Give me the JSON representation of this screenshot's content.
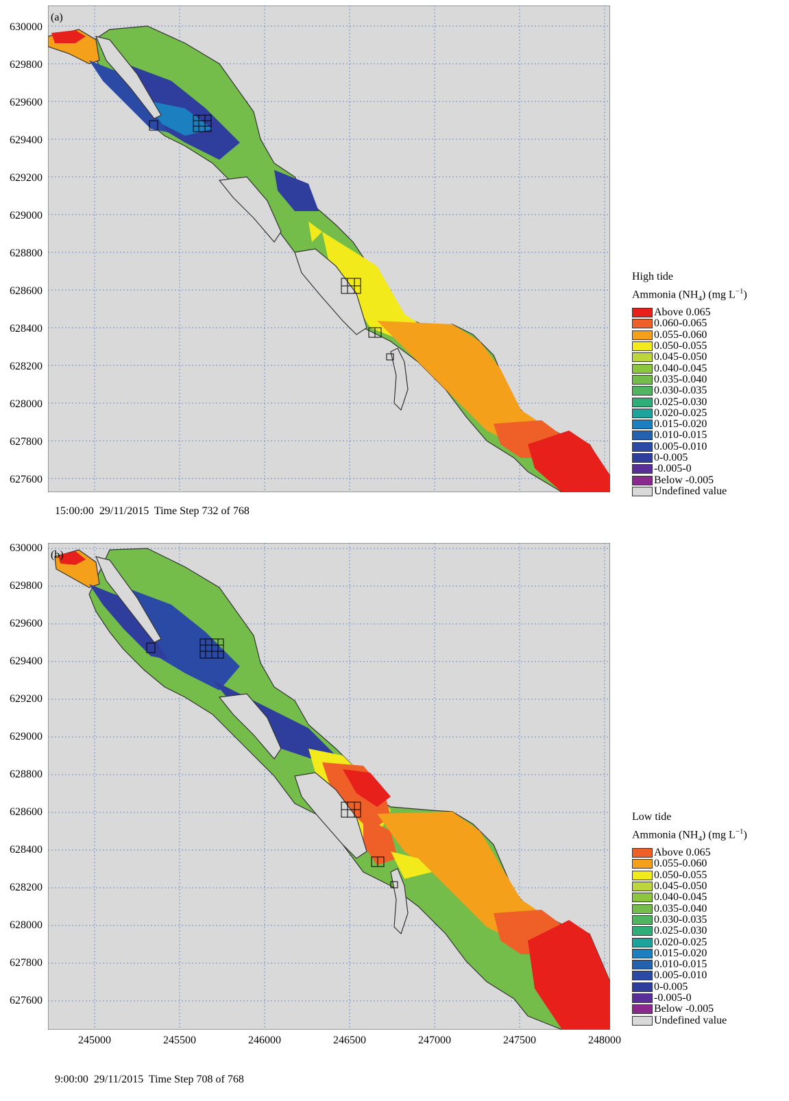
{
  "panels": [
    {
      "label": "(a)",
      "timestamp": "15:00:00  29/11/2015  Time Step 732 of 768",
      "legend_title_1": "High tide",
      "legend_title_2_prefix": "Ammonia (NH",
      "legend_title_2_sub": "4",
      "legend_title_2_mid": ") (mg L",
      "legend_title_2_sup": "−1",
      "legend_title_2_suffix": ")",
      "legend": [
        {
          "label": "Above 0.065",
          "color": "#e8201c"
        },
        {
          "label": "0.060-0.065",
          "color": "#ef5f28"
        },
        {
          "label": "0.055-0.060",
          "color": "#f5a01a"
        },
        {
          "label": "0.050-0.055",
          "color": "#f2ea1b"
        },
        {
          "label": "0.045-0.050",
          "color": "#bcd63b"
        },
        {
          "label": "0.040-0.045",
          "color": "#8cc63f"
        },
        {
          "label": "0.035-0.040",
          "color": "#74bd4a"
        },
        {
          "label": "0.030-0.035",
          "color": "#4fb560"
        },
        {
          "label": "0.025-0.030",
          "color": "#2fae7a"
        },
        {
          "label": "0.020-0.025",
          "color": "#1ba39c"
        },
        {
          "label": "0.015-0.020",
          "color": "#1b7fc0"
        },
        {
          "label": "0.010-0.015",
          "color": "#2462b0"
        },
        {
          "label": "0.005-0.010",
          "color": "#2a4aa6"
        },
        {
          "label": "0-0.005",
          "color": "#2f3d9c"
        },
        {
          "label": "-0.005-0",
          "color": "#5a2e99"
        },
        {
          "label": "Below -0.005",
          "color": "#8a2a8e"
        },
        {
          "label": "Undefined value",
          "color": "#d9d9d9"
        }
      ]
    },
    {
      "label": "(b)",
      "timestamp": "9:00:00  29/11/2015  Time Step 708 of 768",
      "legend_title_1": "Low tide",
      "legend_title_2_prefix": "Ammonia (NH",
      "legend_title_2_sub": "4",
      "legend_title_2_mid": ") (mg L",
      "legend_title_2_sup": "−1",
      "legend_title_2_suffix": ")",
      "legend": [
        {
          "label": "Above 0.065",
          "color": "#ef5f28"
        },
        {
          "label": "0.055-0.060",
          "color": "#f5a01a"
        },
        {
          "label": "0.050-0.055",
          "color": "#f2ea1b"
        },
        {
          "label": "0.045-0.050",
          "color": "#bcd63b"
        },
        {
          "label": "0.040-0.045",
          "color": "#8cc63f"
        },
        {
          "label": "0.035-0.040",
          "color": "#74bd4a"
        },
        {
          "label": "0.030-0.035",
          "color": "#4fb560"
        },
        {
          "label": "0.025-0.030",
          "color": "#2fae7a"
        },
        {
          "label": "0.020-0.025",
          "color": "#1ba39c"
        },
        {
          "label": "0.015-0.020",
          "color": "#1b7fc0"
        },
        {
          "label": "0.010-0.015",
          "color": "#2462b0"
        },
        {
          "label": "0.005-0.010",
          "color": "#2a4aa6"
        },
        {
          "label": "0-0.005",
          "color": "#2f3d9c"
        },
        {
          "label": "-0.005-0",
          "color": "#5a2e99"
        },
        {
          "label": "Below -0.005",
          "color": "#8a2a8e"
        },
        {
          "label": "Undefined value",
          "color": "#d9d9d9"
        }
      ]
    }
  ],
  "y_ticks": [
    "630000",
    "629800",
    "629600",
    "629400",
    "629200",
    "629000",
    "628800",
    "628600",
    "628400",
    "628200",
    "628000",
    "627800",
    "627600"
  ],
  "x_ticks": [
    "245000",
    "245500",
    "246000",
    "246500",
    "247000",
    "247500",
    "248000"
  ],
  "colors": {
    "background": "#d9d9d9",
    "grid": "#6b8fc9",
    "outline": "#333333"
  }
}
